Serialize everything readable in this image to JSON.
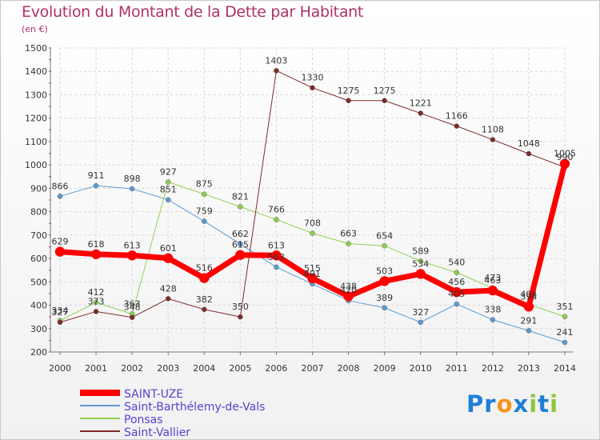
{
  "chart_data": {
    "type": "line",
    "title": "Evolution du Montant de la Dette par Habitant",
    "subtitle": "(en €)",
    "x": [
      "2000",
      "2001",
      "2002",
      "2003",
      "2004",
      "2005",
      "2006",
      "2007",
      "2008",
      "2009",
      "2010",
      "2011",
      "2012",
      "2013",
      "2014"
    ],
    "ylim": [
      200,
      1500
    ],
    "yticks": [
      200,
      300,
      400,
      500,
      600,
      700,
      800,
      900,
      1000,
      1100,
      1200,
      1300,
      1400,
      1500
    ],
    "grid": true,
    "legend_position": "bottom-left",
    "series": [
      {
        "name": "SAINT-UZE",
        "color": "#ff0000",
        "width": 7,
        "values": [
          629,
          618,
          613,
          601,
          516,
          615,
          613,
          515,
          438,
          503,
          534,
          456,
          463,
          394,
          1005
        ]
      },
      {
        "name": "Saint-Barthélemy-de-Vals",
        "color": "#5b9bd5",
        "width": 1,
        "values": [
          866,
          911,
          898,
          851,
          759,
          662,
          563,
          491,
          420,
          389,
          327,
          405,
          338,
          291,
          241
        ]
      },
      {
        "name": "Ponsas",
        "color": "#8fd14f",
        "width": 1,
        "values": [
          334,
          412,
          363,
          927,
          875,
          821,
          766,
          708,
          663,
          654,
          589,
          540,
          473,
          404,
          351
        ]
      },
      {
        "name": "Saint-Vallier",
        "color": "#7f2a2a",
        "width": 1,
        "values": [
          327,
          373,
          348,
          428,
          382,
          350,
          1403,
          1330,
          1275,
          1275,
          1221,
          1166,
          1108,
          1048,
          990
        ]
      }
    ]
  },
  "logo": {
    "text": "Proxiti",
    "letters": [
      "P",
      "r",
      "o",
      "x",
      "i",
      "t",
      "i"
    ],
    "colors": [
      "#1e7fd8",
      "#1e7fd8",
      "#f7941d",
      "#1e7fd8",
      "#8dc63f",
      "#1e7fd8",
      "#8dc63f"
    ]
  }
}
